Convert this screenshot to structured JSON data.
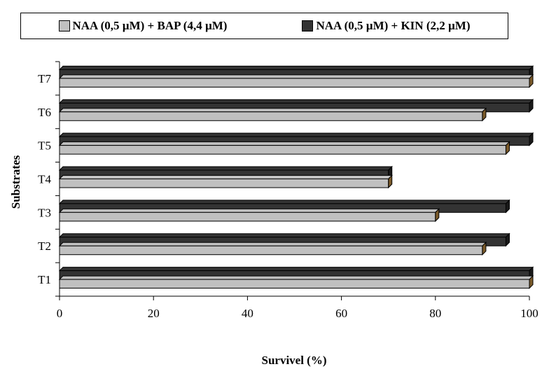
{
  "chart_data": {
    "type": "bar",
    "orientation": "horizontal",
    "categories": [
      "T1",
      "T2",
      "T3",
      "T4",
      "T5",
      "T6",
      "T7"
    ],
    "series": [
      {
        "name": "NAA (0,5 µM) + BAP (4,4 µM)",
        "color": "#c0c0c0",
        "values": [
          100,
          90,
          80,
          70,
          95,
          90,
          100
        ]
      },
      {
        "name": "NAA (0,5 µM) + KIN (2,2 µM)",
        "color": "#333333",
        "values": [
          100,
          95,
          95,
          70,
          100,
          100,
          100
        ]
      }
    ],
    "xlabel": "Survivel (%)",
    "ylabel": "Substrates",
    "xlim": [
      0,
      100
    ],
    "xticks": [
      "0",
      "20",
      "40",
      "60",
      "80",
      "100"
    ],
    "grid": false,
    "legend_position": "top"
  }
}
